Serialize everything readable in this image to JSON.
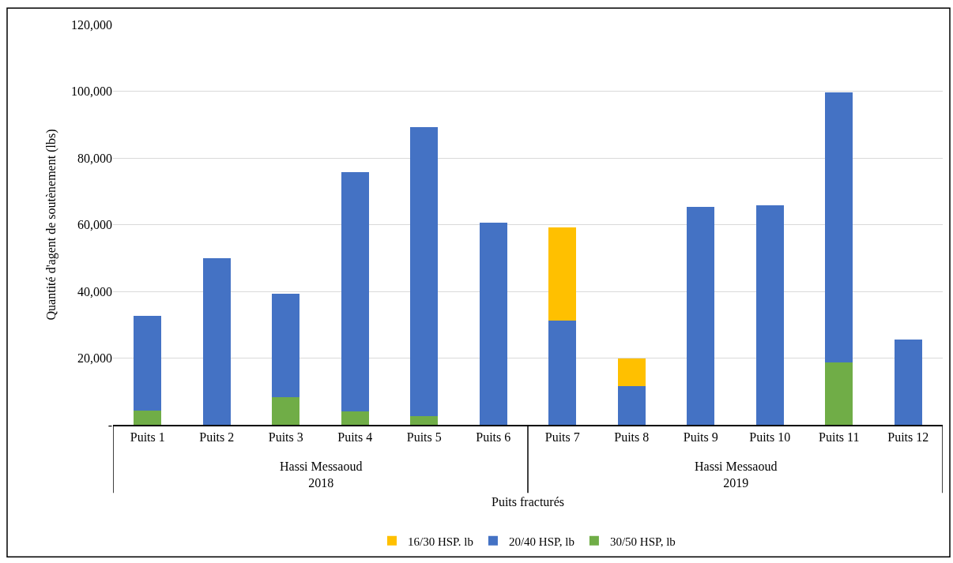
{
  "chart_data": {
    "type": "bar",
    "stacked": true,
    "xlabel": "Puits fracturés",
    "ylabel": "Quantité d'agent de soutènement (lbs)",
    "categories": [
      "Puits 1",
      "Puits 2",
      "Puits 3",
      "Puits 4",
      "Puits 5",
      "Puits 6",
      "Puits 7",
      "Puits 8",
      "Puits 9",
      "Puits 10",
      "Puits 11",
      "Puits 12"
    ],
    "series": [
      {
        "name": "30/50 HSP, lb",
        "color": "#70ad47",
        "values": [
          4200,
          null,
          8300,
          4000,
          2600,
          null,
          null,
          null,
          null,
          null,
          18700,
          null
        ]
      },
      {
        "name": "20/40 HSP, lb",
        "color": "#4472c4",
        "values": [
          28500,
          49900,
          30900,
          71700,
          86700,
          60700,
          31200,
          11500,
          65300,
          65700,
          81000,
          25600
        ]
      },
      {
        "name": "16/30 HSP. lb",
        "color": "#ffc000",
        "values": [
          null,
          null,
          null,
          null,
          null,
          null,
          28000,
          8400,
          null,
          null,
          null,
          null
        ]
      }
    ],
    "ylim": [
      0,
      120000
    ],
    "yticks": [
      {
        "value": 0,
        "label": "-"
      },
      {
        "value": 20000,
        "label": "20,000"
      },
      {
        "value": 40000,
        "label": "40,000"
      },
      {
        "value": 60000,
        "label": "60,000"
      },
      {
        "value": 80000,
        "label": "80,000"
      },
      {
        "value": 100000,
        "label": "100,000"
      },
      {
        "value": 120000,
        "label": "120,000"
      }
    ],
    "annotations": [
      "Hassi Messaoud\n2018",
      "Hassi Messaoud\n2019"
    ],
    "grid": "y",
    "legend": "bottom"
  }
}
